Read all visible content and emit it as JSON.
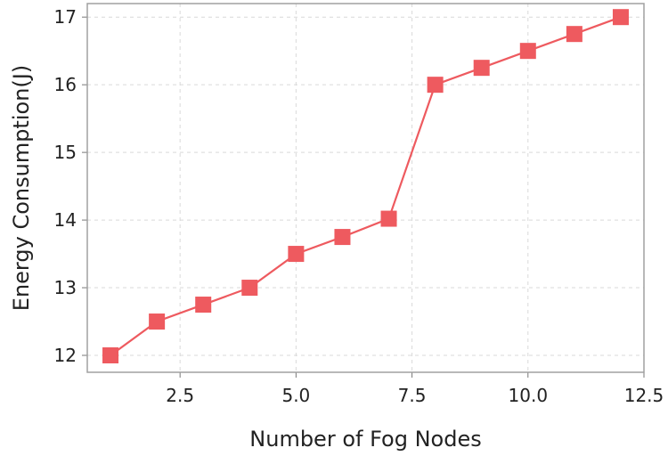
{
  "chart_data": {
    "type": "line",
    "title": "",
    "xlabel": "Number of Fog Nodes",
    "ylabel": "Energy Consumption(J)",
    "xlim": [
      0.5,
      12.5
    ],
    "ylim": [
      11.75,
      17.2
    ],
    "xticks": [
      "2.5",
      "5.0",
      "7.5",
      "10.0",
      "12.5"
    ],
    "xtick_values": [
      2.5,
      5.0,
      7.5,
      10.0,
      12.5
    ],
    "yticks": [
      "12",
      "13",
      "14",
      "15",
      "16",
      "17"
    ],
    "ytick_values": [
      12,
      13,
      14,
      15,
      16,
      17
    ],
    "grid": true,
    "series": [
      {
        "marker": "square",
        "color": "#ee5a5f",
        "x": [
          1,
          2,
          3,
          4,
          5,
          6,
          7,
          8,
          9,
          10,
          11,
          12
        ],
        "y": [
          12.0,
          12.5,
          12.75,
          13.0,
          13.5,
          13.75,
          14.02,
          16.0,
          16.25,
          16.5,
          16.75,
          17.0
        ]
      }
    ]
  }
}
